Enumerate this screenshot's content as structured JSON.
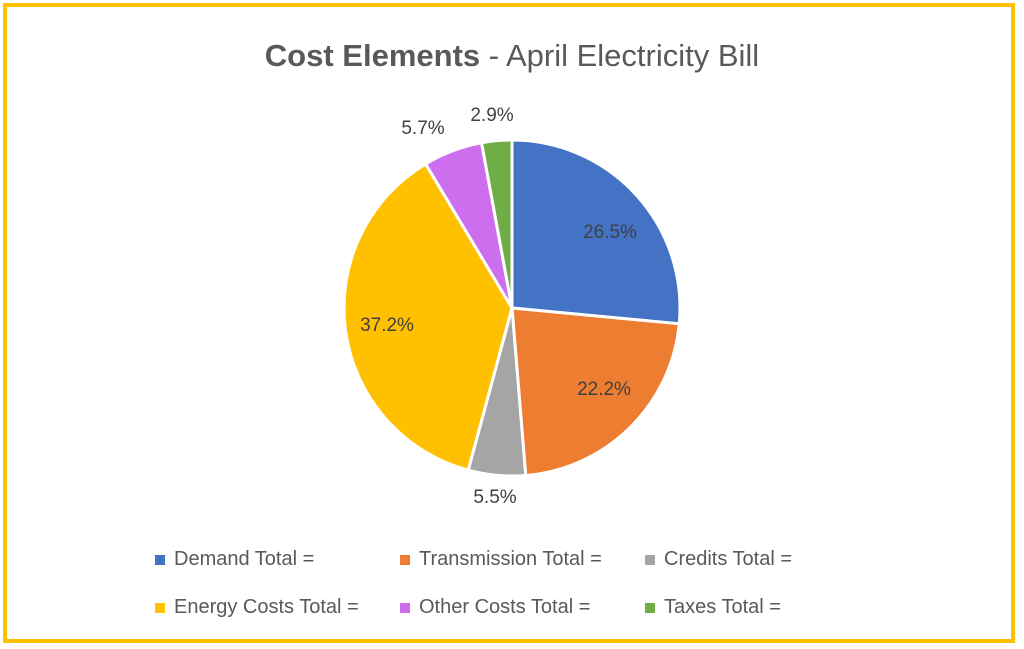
{
  "chart_data": {
    "type": "pie",
    "title_bold": "Cost Elements",
    "title_rest": " - April Electricity Bill",
    "title": "Cost Elements - April Electricity Bill",
    "categories": [
      "Demand Total =",
      "Transmission Total =",
      "Credits Total =",
      "Energy Costs Total =",
      "Other Costs Total =",
      "Taxes Total ="
    ],
    "values": [
      26.5,
      22.2,
      5.5,
      37.2,
      5.7,
      2.9
    ],
    "labels": [
      "26.5%",
      "22.2%",
      "5.5%",
      "37.2%",
      "5.7%",
      "2.9%"
    ],
    "colors": [
      "#4472C4",
      "#ED7D31",
      "#A5A5A5",
      "#FFC000",
      "#CC6EEE",
      "#70AD47"
    ],
    "legend_position": "bottom"
  },
  "frame": {
    "border_color": "#FFC000"
  }
}
